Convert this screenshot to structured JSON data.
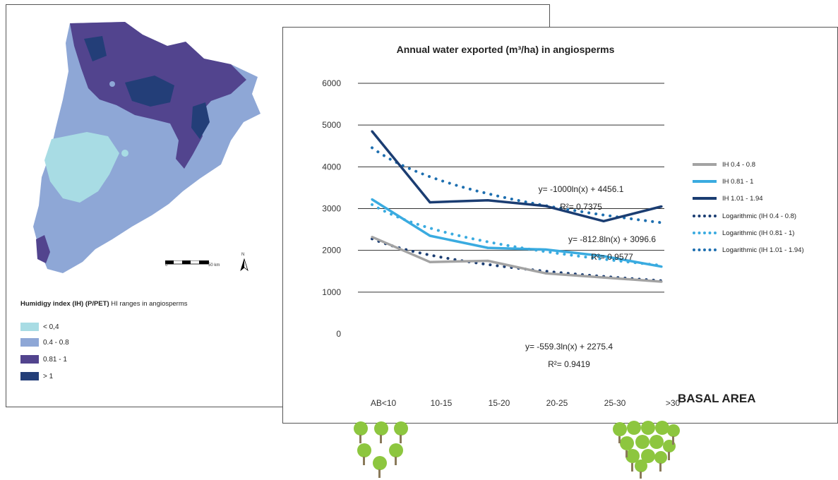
{
  "map": {
    "legend_title_bold": "Humidigy index (IH) (P/PET)",
    "legend_title_rest": " HI ranges in angiosperms",
    "legend": [
      {
        "label": "< 0,4",
        "color": "#a8dce4"
      },
      {
        "label": "0.4 - 0.8",
        "color": "#8ea7d6"
      },
      {
        "label": "0.81 - 1",
        "color": "#52448e"
      },
      {
        "label": "> 1",
        "color": "#233e78"
      }
    ],
    "scale_0": "0",
    "scale_50": "50 km",
    "north": "N"
  },
  "chart_data": {
    "type": "line",
    "title": "Annual water exported (m³/ha) in angiosperms",
    "xlabel": "BASAL AREA",
    "ylabel": "",
    "categories": [
      "AB<10",
      "10-15",
      "15-20",
      "20-25",
      "25-30",
      ">30"
    ],
    "ylim": [
      0,
      6000
    ],
    "yticks": [
      0,
      1000,
      2000,
      3000,
      4000,
      5000,
      6000
    ],
    "grid": true,
    "legend_position": "right",
    "series": [
      {
        "name": "IH 0.4 - 0.8",
        "values": [
          2320,
          1720,
          1750,
          1450,
          1350,
          1250
        ],
        "color": "#a3a3a3",
        "style": "solid"
      },
      {
        "name": "IH 0.81 - 1",
        "values": [
          3220,
          2350,
          2060,
          2020,
          1860,
          1610
        ],
        "color": "#3aabe0",
        "style": "solid"
      },
      {
        "name": "IH 1.01 - 1.94",
        "values": [
          4850,
          3150,
          3200,
          3060,
          2700,
          3050
        ],
        "color": "#1b3d72",
        "style": "solid"
      },
      {
        "name": "Logarithmic (IH 0.4 - 0.8)",
        "color": "#1b3d72",
        "style": "dotted",
        "trend": {
          "a": -559.3,
          "b": 2275.4
        }
      },
      {
        "name": "Logarithmic (IH 0.81 - 1)",
        "color": "#3aabe0",
        "style": "dotted",
        "trend": {
          "a": -812.8,
          "b": 3096.6
        }
      },
      {
        "name": "Logarithmic (IH 1.01 - 1.94)",
        "color": "#1e6fb0",
        "style": "dotted",
        "trend": {
          "a": -1000,
          "b": 4456.1
        }
      }
    ],
    "annotations": [
      {
        "eq": "y= -1000ln(x) + 4456.1",
        "r2": "R²= 0.7375"
      },
      {
        "eq": "y= -812.8ln(x) + 3096.6",
        "r2": "R²= 0.9577"
      },
      {
        "eq": "y= -559.3ln(x) + 2275.4",
        "r2": "R²= 0.9419"
      }
    ]
  }
}
